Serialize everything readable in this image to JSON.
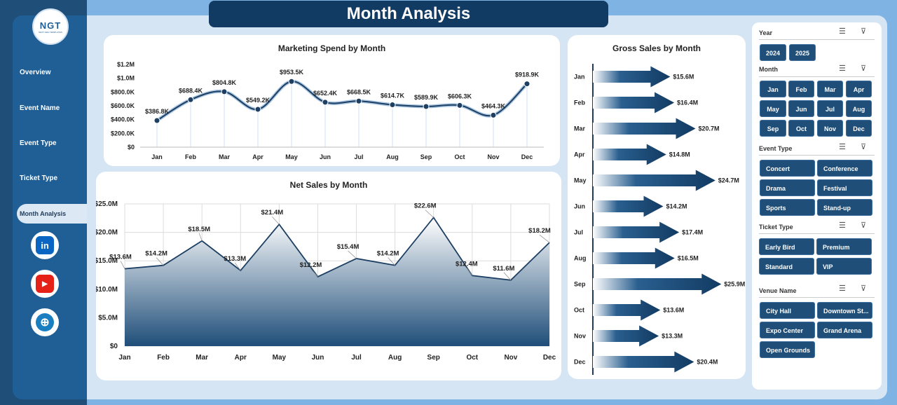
{
  "header": {
    "title": "Month Analysis"
  },
  "logo": {
    "text": "NGT",
    "subtitle": "NEXT GEN TEMPLATES"
  },
  "nav": {
    "items": [
      {
        "label": "Overview"
      },
      {
        "label": "Event Name"
      },
      {
        "label": "Event Type"
      },
      {
        "label": "Ticket Type"
      },
      {
        "label": "Month Analysis",
        "active": true
      }
    ]
  },
  "social": [
    {
      "icon": "linkedin-icon",
      "glyph": "in",
      "color": "#0a66c2"
    },
    {
      "icon": "youtube-icon",
      "glyph": "▶",
      "color": "#e62117"
    },
    {
      "icon": "globe-icon",
      "glyph": "⊕",
      "color": "#1a7fc1"
    }
  ],
  "colors": {
    "navy": "#1f4e79",
    "dark": "#123b63",
    "accent": "#1f5f96"
  },
  "charts": {
    "marketing_title": "Marketing Spend by Month",
    "net_title": "Net Sales by Month",
    "gross_title": "Gross Sales by Month"
  },
  "chart_data": [
    {
      "type": "line",
      "title": "Marketing Spend by Month",
      "categories": [
        "Jan",
        "Feb",
        "Mar",
        "Apr",
        "May",
        "Jun",
        "Jul",
        "Aug",
        "Sep",
        "Oct",
        "Nov",
        "Dec"
      ],
      "values": [
        386.8,
        688.4,
        804.8,
        549.2,
        953.5,
        652.4,
        668.5,
        614.7,
        589.9,
        606.3,
        464.3,
        918.9
      ],
      "labels": [
        "$386.8K",
        "$688.4K",
        "$804.8K",
        "$549.2K",
        "$953.5K",
        "$652.4K",
        "$668.5K",
        "$614.7K",
        "$589.9K",
        "$606.3K",
        "$464.3K",
        "$918.9K"
      ],
      "ylim": [
        0,
        1200
      ],
      "yticks": [
        "$0",
        "$200.0K",
        "$400.0K",
        "$600.0K",
        "$800.0K",
        "$1.0M",
        "$1.2M"
      ],
      "grid": false
    },
    {
      "type": "area",
      "title": "Net Sales by Month",
      "categories": [
        "Jan",
        "Feb",
        "Mar",
        "Apr",
        "May",
        "Jun",
        "Jul",
        "Aug",
        "Sep",
        "Oct",
        "Nov",
        "Dec"
      ],
      "values": [
        13.6,
        14.2,
        18.5,
        13.3,
        21.4,
        12.2,
        15.4,
        14.2,
        22.6,
        12.4,
        11.6,
        18.2
      ],
      "labels": [
        "$13.6M",
        "$14.2M",
        "$18.5M",
        "$13.3M",
        "$21.4M",
        "$12.2M",
        "$15.4M",
        "$14.2M",
        "$22.6M",
        "$12.4M",
        "$11.6M",
        "$18.2M"
      ],
      "ylim": [
        0,
        25
      ],
      "yticks": [
        "$0",
        "$5.0M",
        "$10.0M",
        "$15.0M",
        "$20.0M",
        "$25.0M"
      ],
      "grid": true
    },
    {
      "type": "bar",
      "orientation": "horizontal",
      "title": "Gross Sales by Month",
      "categories": [
        "Jan",
        "Feb",
        "Mar",
        "Apr",
        "May",
        "Jun",
        "Jul",
        "Aug",
        "Sep",
        "Oct",
        "Nov",
        "Dec"
      ],
      "values": [
        15.6,
        16.4,
        20.7,
        14.8,
        24.7,
        14.2,
        17.4,
        16.5,
        25.9,
        13.6,
        13.3,
        20.4
      ],
      "labels": [
        "$15.6M",
        "$16.4M",
        "$20.7M",
        "$14.8M",
        "$24.7M",
        "$14.2M",
        "$17.4M",
        "$16.5M",
        "$25.9M",
        "$13.6M",
        "$13.3M",
        "$20.4M"
      ],
      "ylim": [
        0,
        26
      ]
    }
  ],
  "slicers": {
    "year": {
      "title": "Year",
      "items": [
        "2024",
        "2025"
      ]
    },
    "month": {
      "title": "Month",
      "items": [
        "Jan",
        "Feb",
        "Mar",
        "Apr",
        "May",
        "Jun",
        "Jul",
        "Aug",
        "Sep",
        "Oct",
        "Nov",
        "Dec"
      ]
    },
    "event_type": {
      "title": "Event Type",
      "items": [
        "Concert",
        "Conference",
        "Drama",
        "Festival",
        "Sports",
        "Stand-up"
      ]
    },
    "ticket_type": {
      "title": "Ticket Type",
      "items": [
        "Early Bird",
        "Premium",
        "Standard",
        "VIP"
      ]
    },
    "venue_name": {
      "title": "Venue Name",
      "items": [
        "City Hall",
        "Downtown St...",
        "Expo Center",
        "Grand Arena",
        "Open Grounds"
      ]
    }
  }
}
